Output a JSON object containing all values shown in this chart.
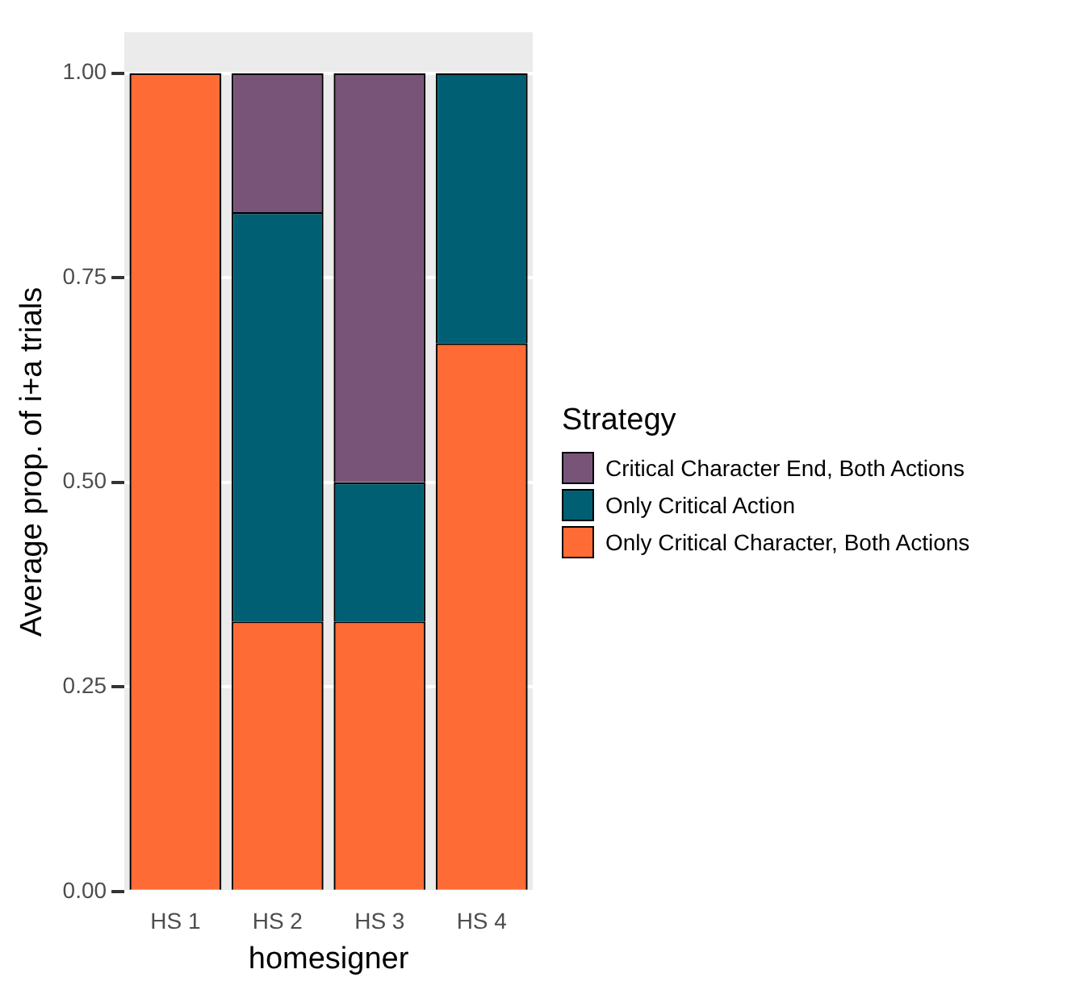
{
  "chart_data": {
    "type": "bar",
    "stacked": true,
    "xlabel": "homesigner",
    "ylabel": "Average prop. of i+a trials",
    "legend_title": "Strategy",
    "legend": "right",
    "categories": [
      "HS 1",
      "HS 2",
      "HS 3",
      "HS 4"
    ],
    "series": [
      {
        "name": "Only Critical Character, Both Actions",
        "color": "#ff6b35",
        "values": [
          1.0,
          0.33,
          0.33,
          0.67
        ]
      },
      {
        "name": "Only Critical Action",
        "color": "#005f73",
        "values": [
          0,
          0.5,
          0.17,
          0.33
        ]
      },
      {
        "name": "Critical Character End, Both Actions",
        "color": "#785478",
        "values": [
          0,
          0.17,
          0.5,
          0
        ]
      }
    ],
    "ylim": [
      0,
      1.05
    ],
    "yticks": [
      {
        "value": 0,
        "label": "0.00"
      },
      {
        "value": 0.25,
        "label": "0.25"
      },
      {
        "value": 0.5,
        "label": "0.50"
      },
      {
        "value": 0.75,
        "label": "0.75"
      },
      {
        "value": 1,
        "label": "1.00"
      }
    ],
    "grid": "y"
  }
}
